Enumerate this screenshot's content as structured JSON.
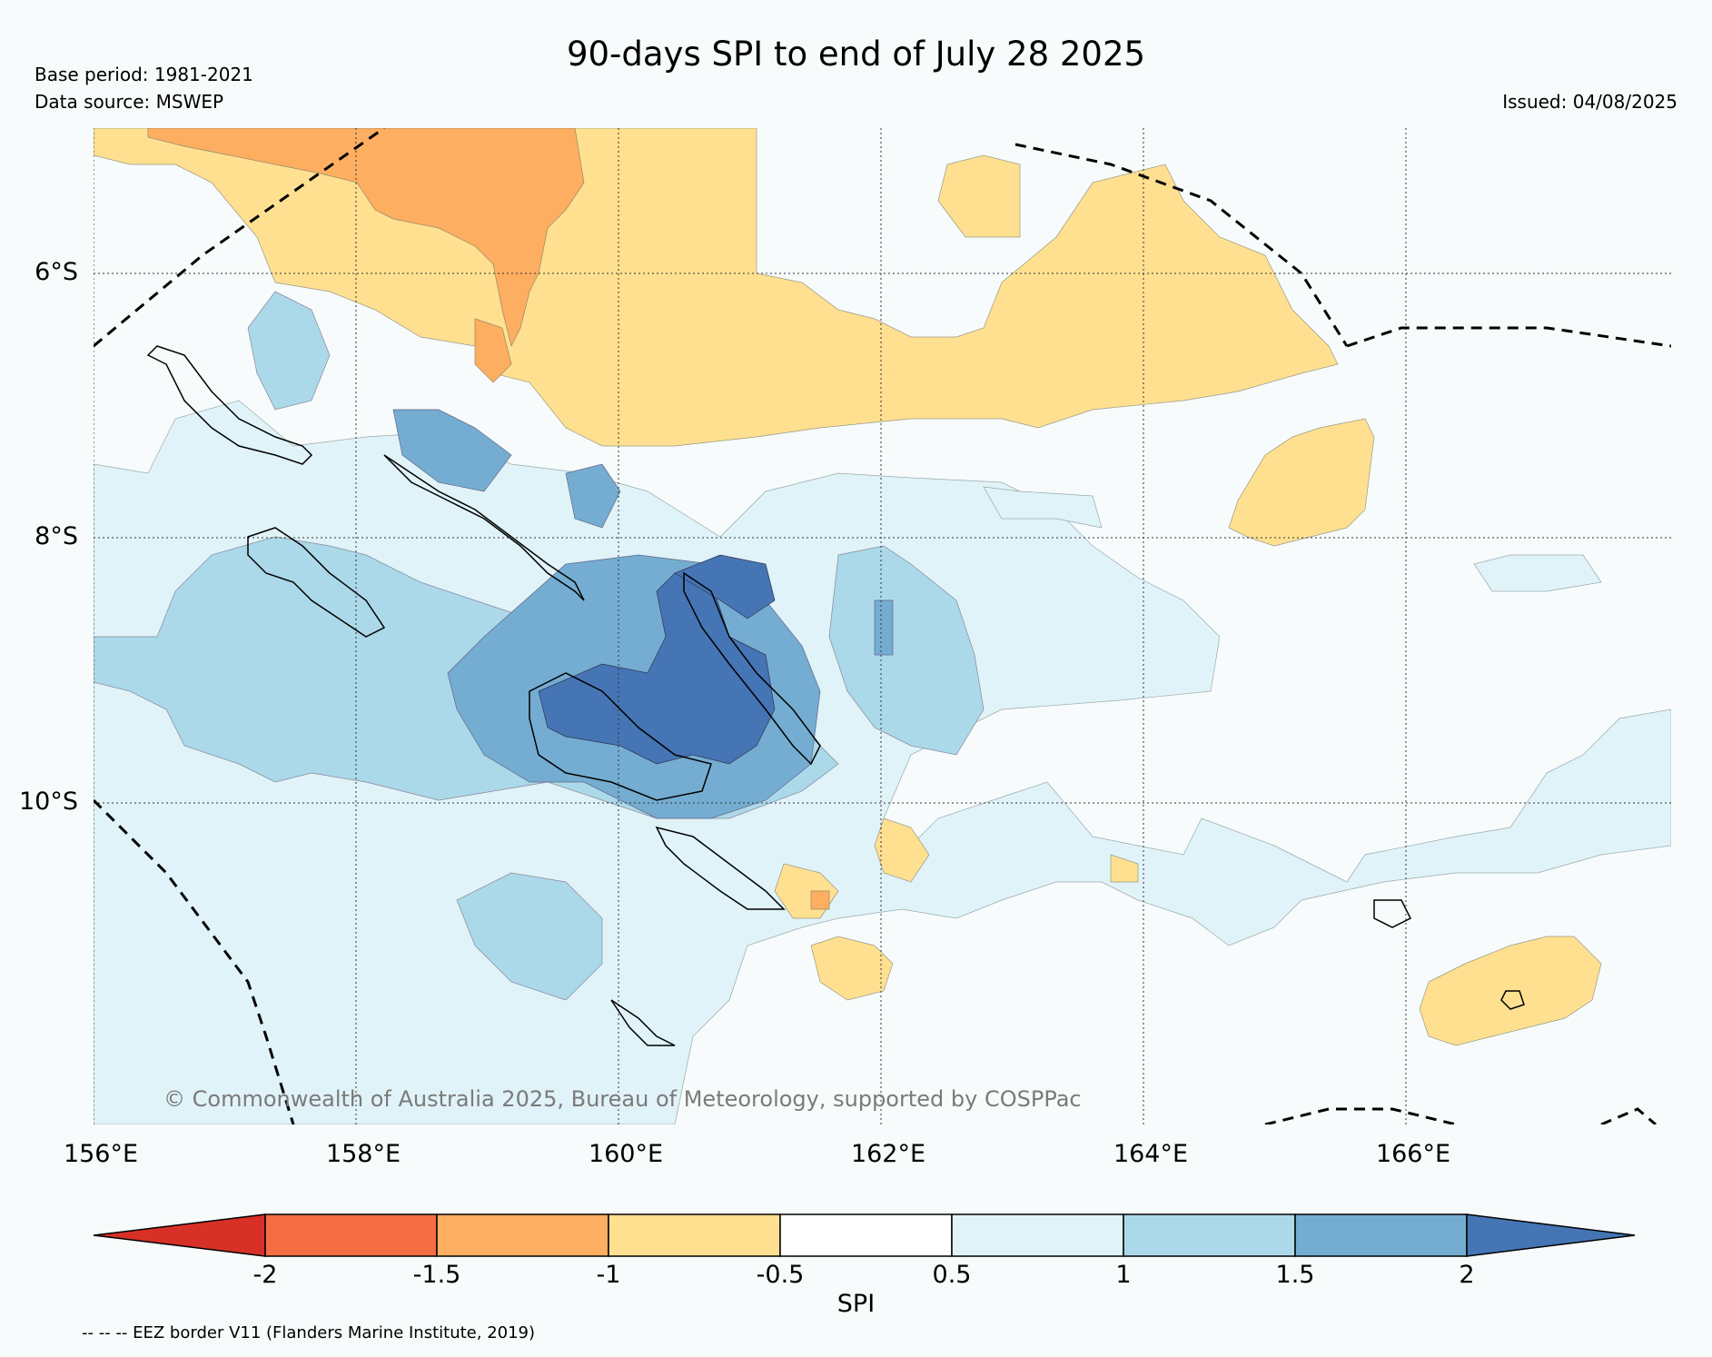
{
  "title": "90-days SPI to end of July 28 2025",
  "base_period": "Base period: 1981-2021",
  "data_source": "Data source: MSWEP",
  "issued": "Issued: 04/08/2025",
  "copyright": "© Commonwealth of Australia 2025, Bureau of Meteorology, supported by COSPPac",
  "lat_ticks": [
    "6°S",
    "8°S",
    "10°S"
  ],
  "lon_ticks": [
    "156°E",
    "158°E",
    "160°E",
    "162°E",
    "164°E",
    "166°E"
  ],
  "colorbar": {
    "title": "SPI",
    "labels": [
      "-2",
      "-1.5",
      "-1",
      "-0.5",
      "0.5",
      "1",
      "1.5",
      "2"
    ],
    "colors": [
      "#d73027",
      "#f46d43",
      "#fdae61",
      "#fee090",
      "#ffffff",
      "#e0f3f8",
      "#abd9e9",
      "#74add1",
      "#4575b4"
    ]
  },
  "footnote": "-- -- -- EEZ border V11 (Flanders Marine Institute, 2019)"
}
